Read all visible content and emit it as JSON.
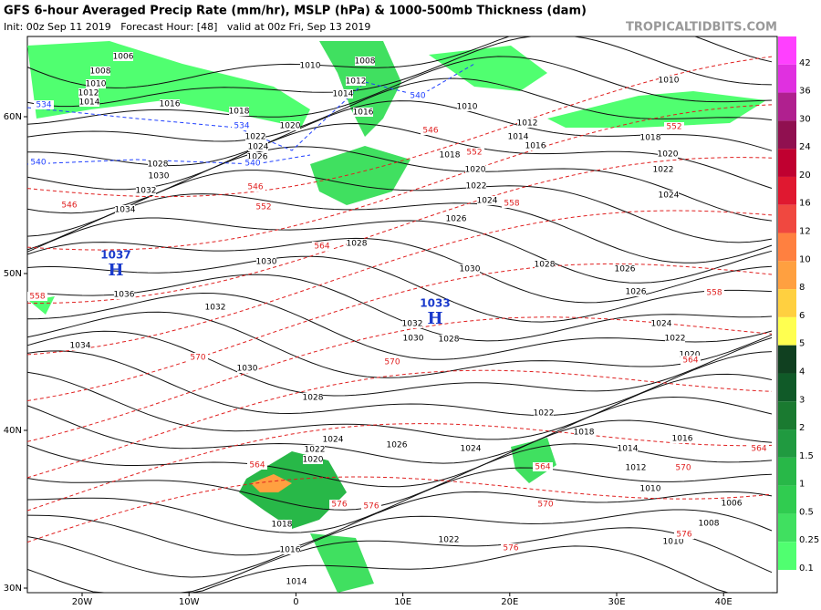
{
  "header": {
    "title": "GFS 6-hour Averaged Precip Rate (mm/hr), MSLP (hPa) & 1000-500mb Thickness (dam)",
    "subtitle": "Init: 00z Sep 11 2019   Forecast Hour: [48]   valid at 00z Fri, Sep 13 2019",
    "brand": "TROPICALTIDBITS.COM"
  },
  "axes": {
    "lat": [
      "60N",
      "50N",
      "40N",
      "30N"
    ],
    "lon": [
      "20W",
      "10W",
      "0",
      "10E",
      "20E",
      "30E",
      "40E"
    ]
  },
  "colorbar": {
    "labels": [
      "42",
      "36",
      "30",
      "24",
      "20",
      "16",
      "12",
      "10",
      "8",
      "6",
      "5",
      "4",
      "3",
      "2",
      "1.5",
      "1",
      "0.5",
      "0.25",
      "0.1"
    ],
    "colors": [
      "#ff40ff",
      "#e030e0",
      "#b0208f",
      "#901050",
      "#c00030",
      "#e01830",
      "#f04840",
      "#ff8040",
      "#ffa040",
      "#ffd040",
      "#ffff50",
      "#104020",
      "#105a28",
      "#1a7a30",
      "#209a40",
      "#28b848",
      "#30cc50",
      "#40e060",
      "#50ff70"
    ]
  },
  "pressure_centers": [
    {
      "value": "1037",
      "symbol": "H"
    },
    {
      "value": "1033",
      "symbol": "H"
    }
  ],
  "isobar_labels": [
    "1006",
    "1008",
    "1010",
    "1012",
    "1014",
    "1016",
    "1018",
    "1020",
    "1022",
    "1024",
    "1026",
    "1028",
    "1030",
    "1032",
    "1034",
    "1010",
    "1008",
    "1012",
    "1014",
    "1016",
    "1010",
    "1012",
    "1014",
    "1016",
    "1018",
    "1020",
    "1022",
    "1024",
    "1026",
    "1028",
    "1030",
    "1036",
    "1032",
    "1034",
    "1030",
    "1028",
    "1026",
    "1026",
    "1024",
    "1022",
    "1020",
    "1018",
    "1020",
    "1022",
    "1024",
    "1032",
    "1030",
    "1028",
    "1030",
    "1028",
    "1026",
    "1024",
    "1022",
    "1020",
    "1024",
    "1022",
    "1018",
    "1014",
    "1016",
    "1012",
    "1010",
    "1006",
    "1008",
    "1010",
    "1018",
    "1016",
    "1014",
    "1022",
    "1010"
  ],
  "thickness_labels": [
    "546",
    "558",
    "546",
    "552",
    "564",
    "570",
    "570",
    "558",
    "552",
    "546",
    "552",
    "558",
    "564",
    "564",
    "570",
    "576",
    "576",
    "570",
    "576",
    "576",
    "564",
    "564"
  ],
  "low_thickness_labels": [
    "534",
    "534",
    "540",
    "540",
    "540"
  ]
}
